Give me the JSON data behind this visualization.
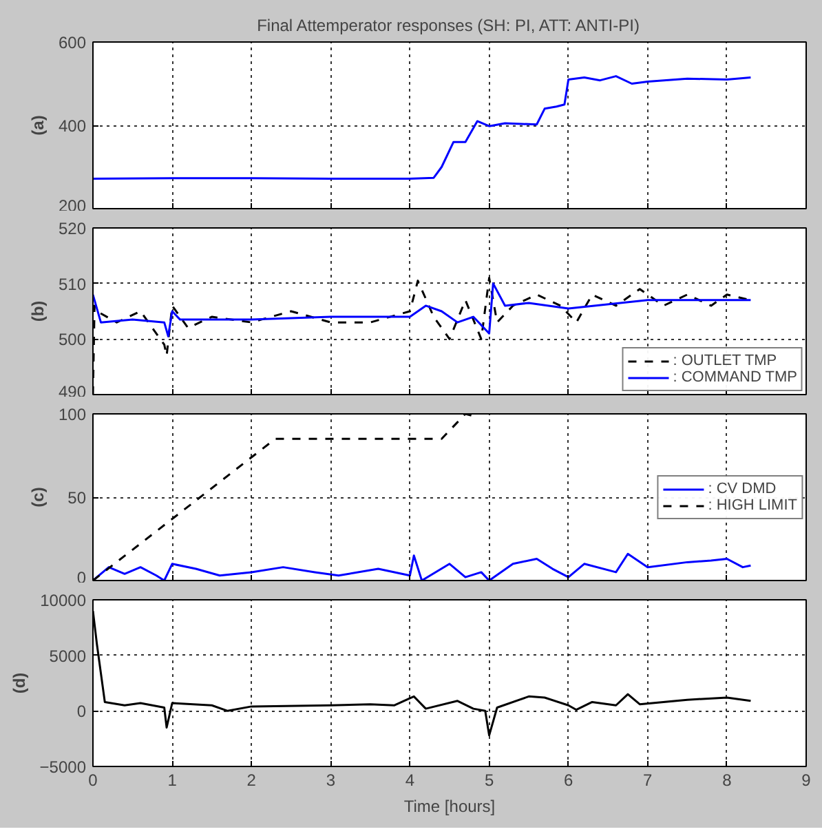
{
  "chart_data": [
    {
      "type": "line",
      "title": "Final Attemperator responses (SH: PI, ATT: ANTI-PI)",
      "ylabel": "(a)",
      "xlim": [
        0,
        9
      ],
      "xticks": [
        0,
        1,
        2,
        3,
        4,
        5,
        6,
        7,
        8,
        9
      ],
      "ylim": [
        200,
        600
      ],
      "yticks": [
        200,
        400,
        600
      ],
      "grid": true,
      "tick_labels": "y",
      "legend": false,
      "series": [
        {
          "color": "#0000ff",
          "line_style": "solid",
          "x": [
            0,
            1,
            2,
            3,
            4,
            4.3,
            4.4,
            4.55,
            4.7,
            4.85,
            5.0,
            5.2,
            5.6,
            5.7,
            5.85,
            5.95,
            6.0,
            6.2,
            6.4,
            6.6,
            6.8,
            7.0,
            7.5,
            8.0,
            8.3
          ],
          "values": [
            272,
            273,
            273,
            272,
            272,
            274,
            300,
            360,
            360,
            410,
            398,
            405,
            402,
            440,
            445,
            450,
            510,
            515,
            508,
            518,
            500,
            505,
            512,
            510,
            515
          ]
        }
      ]
    },
    {
      "type": "line",
      "ylabel": "(b)",
      "xlim": [
        0,
        9
      ],
      "xticks": [
        0,
        1,
        2,
        3,
        4,
        5,
        6,
        7,
        8,
        9
      ],
      "ylim": [
        490,
        520
      ],
      "yticks": [
        490,
        500,
        510,
        520
      ],
      "grid": true,
      "tick_labels": "y",
      "legend": "bottom right",
      "series": [
        {
          "name": ": OUTLET TMP",
          "color": "#000000",
          "line_style": "dashed",
          "x": [
            0,
            0.02,
            0.05,
            0.3,
            0.6,
            0.9,
            0.93,
            1.0,
            1.2,
            1.5,
            2,
            2.5,
            3,
            3.5,
            4,
            4.1,
            4.3,
            4.5,
            4.7,
            4.9,
            5.0,
            5.1,
            5.3,
            5.6,
            5.9,
            6.1,
            6.3,
            6.6,
            6.9,
            7.2,
            7.5,
            7.8,
            8.0,
            8.3
          ],
          "values": [
            490,
            506,
            505,
            503,
            505,
            499,
            497,
            506,
            502,
            504,
            503,
            505,
            503,
            503,
            505,
            510.5,
            504,
            500,
            507,
            500,
            511,
            503,
            506,
            508,
            506,
            503,
            508,
            506,
            509,
            506,
            508,
            506,
            508,
            507
          ]
        },
        {
          "name": ": COMMAND TMP",
          "color": "#0000ff",
          "line_style": "solid",
          "x": [
            0,
            0.1,
            0.5,
            0.9,
            0.95,
            1.0,
            1.1,
            2,
            3,
            4,
            4.2,
            4.4,
            4.6,
            4.8,
            5.0,
            5.05,
            5.2,
            5.5,
            6,
            7,
            8,
            8.3
          ],
          "values": [
            508,
            503,
            503.5,
            503,
            500.5,
            505,
            503.5,
            503.5,
            504,
            504,
            506,
            505,
            503,
            504,
            501,
            510,
            506,
            506.5,
            505.5,
            507,
            507,
            507
          ]
        }
      ]
    },
    {
      "type": "line",
      "ylabel": "(c)",
      "xlim": [
        0,
        9
      ],
      "xticks": [
        0,
        1,
        2,
        3,
        4,
        5,
        6,
        7,
        8,
        9
      ],
      "ylim": [
        0,
        100
      ],
      "yticks": [
        0,
        50,
        100
      ],
      "grid": true,
      "tick_labels": "y",
      "legend": "right",
      "series": [
        {
          "name": ": CV DMD",
          "color": "#0000ff",
          "line_style": "solid",
          "x": [
            0,
            0.2,
            0.4,
            0.6,
            0.8,
            0.9,
            1.0,
            1.3,
            1.6,
            2.0,
            2.4,
            2.8,
            3.1,
            3.6,
            4.0,
            4.05,
            4.15,
            4.5,
            4.7,
            4.9,
            5.0,
            5.3,
            5.6,
            5.8,
            6.0,
            6.2,
            6.6,
            6.75,
            7.0,
            7.5,
            7.8,
            8.0,
            8.2,
            8.3
          ],
          "values": [
            0,
            8,
            4,
            8,
            3,
            0,
            10,
            7,
            3,
            5,
            8,
            5,
            3,
            7,
            3,
            15,
            0,
            10,
            2,
            5,
            0,
            10,
            13,
            7,
            2,
            10,
            5,
            16,
            8,
            11,
            12,
            13,
            8,
            9
          ]
        },
        {
          "name": ": HIGH LIMIT",
          "color": "#000000",
          "line_style": "dashed",
          "x": [
            0,
            2.3,
            4.4,
            4.6,
            4.7,
            4.85
          ],
          "values": [
            0,
            85,
            85,
            95,
            100,
            98
          ]
        }
      ]
    },
    {
      "type": "line",
      "ylabel": "(d)",
      "xlabel": "Time [hours]",
      "xlim": [
        0,
        9
      ],
      "xticks": [
        0,
        1,
        2,
        3,
        4,
        5,
        6,
        7,
        8,
        9
      ],
      "ylim": [
        -5000,
        10000
      ],
      "yticks": [
        -5000,
        0,
        5000,
        10000
      ],
      "grid": true,
      "legend": false,
      "series": [
        {
          "color": "#000000",
          "line_style": "solid",
          "x": [
            0,
            0.05,
            0.15,
            0.4,
            0.6,
            0.9,
            0.93,
            1.0,
            1.5,
            1.7,
            2.0,
            3.0,
            3.5,
            3.8,
            4.05,
            4.2,
            4.6,
            4.8,
            4.95,
            5.0,
            5.1,
            5.5,
            5.7,
            6.0,
            6.1,
            6.3,
            6.6,
            6.75,
            6.9,
            7.5,
            8.0,
            8.3
          ],
          "values": [
            9000,
            6000,
            800,
            500,
            700,
            300,
            -1500,
            700,
            500,
            0,
            400,
            500,
            600,
            500,
            1300,
            200,
            900,
            200,
            0,
            -2200,
            300,
            1300,
            1200,
            500,
            100,
            800,
            500,
            1500,
            600,
            1000,
            1200,
            900
          ]
        }
      ]
    }
  ]
}
